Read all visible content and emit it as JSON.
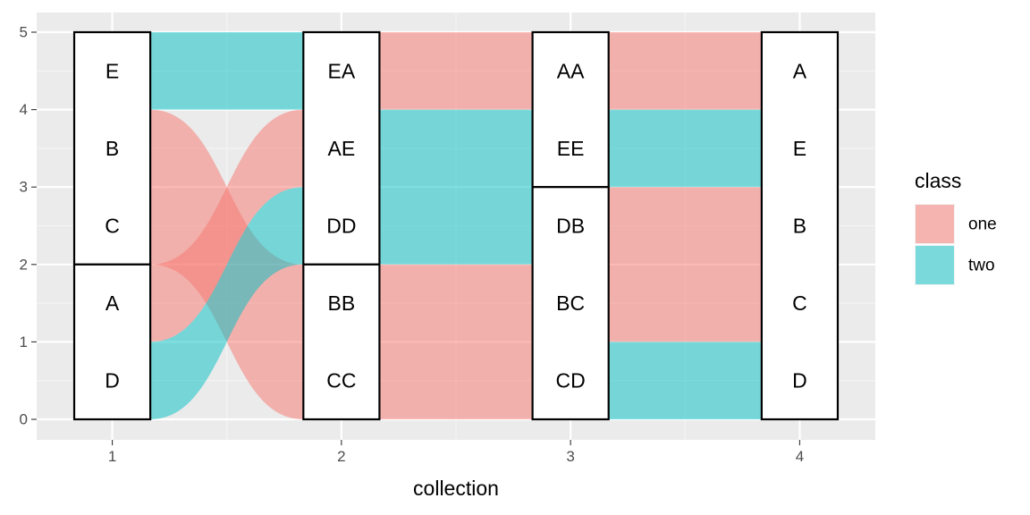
{
  "chart_data": {
    "type": "alluvial",
    "title": "",
    "xlabel": "collection",
    "ylabel": "",
    "x_categories": [
      "1",
      "2",
      "3",
      "4"
    ],
    "x_range": [
      0.67,
      4.33
    ],
    "ylim": [
      0,
      5
    ],
    "y_ticks": [
      0,
      1,
      2,
      3,
      4,
      5
    ],
    "grid": true,
    "legend": {
      "title": "class",
      "position": "right",
      "entries": [
        {
          "name": "one",
          "color": "#F8766D"
        },
        {
          "name": "two",
          "color": "#00BFC4"
        }
      ]
    },
    "fill_alpha": 0.5,
    "axes": [
      {
        "x": 1,
        "strata": [
          {
            "label": "E",
            "ymin": 4,
            "ymax": 5
          },
          {
            "label": "B",
            "ymin": 3,
            "ymax": 4
          },
          {
            "label": "C",
            "ymin": 2,
            "ymax": 3
          },
          {
            "label": "A",
            "ymin": 1,
            "ymax": 2
          },
          {
            "label": "D",
            "ymin": 0,
            "ymax": 1
          }
        ],
        "boxes": [
          {
            "ymin": 2,
            "ymax": 5
          },
          {
            "ymin": 0,
            "ymax": 2
          }
        ]
      },
      {
        "x": 2,
        "strata": [
          {
            "label": "EA",
            "ymin": 4,
            "ymax": 5
          },
          {
            "label": "AE",
            "ymin": 3,
            "ymax": 4
          },
          {
            "label": "DD",
            "ymin": 2,
            "ymax": 3
          },
          {
            "label": "BB",
            "ymin": 1,
            "ymax": 2
          },
          {
            "label": "CC",
            "ymin": 0,
            "ymax": 1
          }
        ],
        "boxes": [
          {
            "ymin": 2,
            "ymax": 5
          },
          {
            "ymin": 0,
            "ymax": 2
          }
        ]
      },
      {
        "x": 3,
        "strata": [
          {
            "label": "AA",
            "ymin": 4,
            "ymax": 5
          },
          {
            "label": "EE",
            "ymin": 3,
            "ymax": 4
          },
          {
            "label": "DB",
            "ymin": 2,
            "ymax": 3
          },
          {
            "label": "BC",
            "ymin": 1,
            "ymax": 2
          },
          {
            "label": "CD",
            "ymin": 0,
            "ymax": 1
          }
        ],
        "boxes": [
          {
            "ymin": 3,
            "ymax": 5
          },
          {
            "ymin": 0,
            "ymax": 3
          }
        ]
      },
      {
        "x": 4,
        "strata": [
          {
            "label": "A",
            "ymin": 4,
            "ymax": 5
          },
          {
            "label": "E",
            "ymin": 3,
            "ymax": 4
          },
          {
            "label": "B",
            "ymin": 2,
            "ymax": 3
          },
          {
            "label": "C",
            "ymin": 1,
            "ymax": 2
          },
          {
            "label": "D",
            "ymin": 0,
            "ymax": 1
          }
        ],
        "boxes": [
          {
            "ymin": 0,
            "ymax": 5
          }
        ]
      }
    ],
    "flows": [
      {
        "from": 1,
        "to": 2,
        "class": "two",
        "y0": [
          4,
          5
        ],
        "y1": [
          4,
          5
        ]
      },
      {
        "from": 1,
        "to": 2,
        "class": "one",
        "y0": [
          3,
          4
        ],
        "y1": [
          1,
          2
        ]
      },
      {
        "from": 1,
        "to": 2,
        "class": "one",
        "y0": [
          2,
          3
        ],
        "y1": [
          0,
          1
        ]
      },
      {
        "from": 1,
        "to": 2,
        "class": "one",
        "y0": [
          1,
          2
        ],
        "y1": [
          3,
          4
        ]
      },
      {
        "from": 1,
        "to": 2,
        "class": "two",
        "y0": [
          0,
          1
        ],
        "y1": [
          2,
          3
        ]
      },
      {
        "from": 2,
        "to": 3,
        "class": "one",
        "y0": [
          4,
          5
        ],
        "y1": [
          4,
          5
        ]
      },
      {
        "from": 2,
        "to": 3,
        "class": "two",
        "y0": [
          2,
          4
        ],
        "y1": [
          2,
          4
        ]
      },
      {
        "from": 2,
        "to": 3,
        "class": "one",
        "y0": [
          0,
          2
        ],
        "y1": [
          0,
          2
        ]
      },
      {
        "from": 3,
        "to": 4,
        "class": "one",
        "y0": [
          4,
          5
        ],
        "y1": [
          4,
          5
        ]
      },
      {
        "from": 3,
        "to": 4,
        "class": "two",
        "y0": [
          3,
          4
        ],
        "y1": [
          3,
          4
        ]
      },
      {
        "from": 3,
        "to": 4,
        "class": "one",
        "y0": [
          1,
          3
        ],
        "y1": [
          1,
          3
        ]
      },
      {
        "from": 3,
        "to": 4,
        "class": "two",
        "y0": [
          0,
          1
        ],
        "y1": [
          0,
          1
        ]
      }
    ]
  }
}
